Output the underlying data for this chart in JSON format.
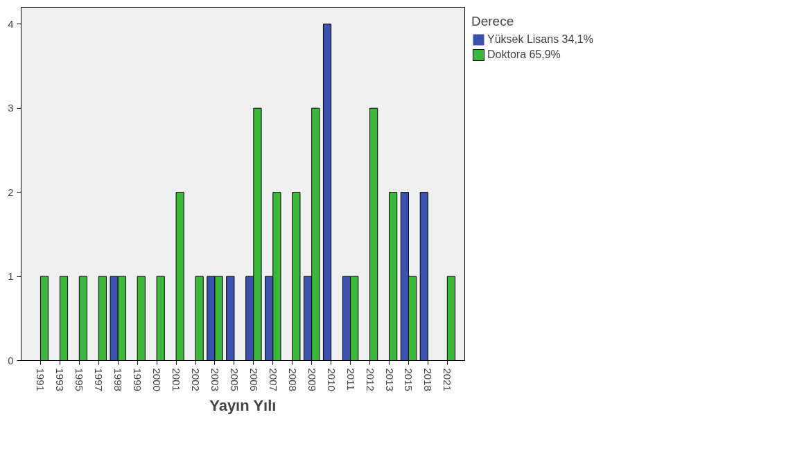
{
  "chart_data": {
    "type": "bar",
    "xlabel": "Yayın Yılı",
    "legend_title": "Derece",
    "legend": "top right",
    "grid": false,
    "categories": [
      "1991",
      "1993",
      "1995",
      "1997",
      "1998",
      "1999",
      "2000",
      "2001",
      "2002",
      "2003",
      "2005",
      "2006",
      "2007",
      "2008",
      "2009",
      "2010",
      "2011",
      "2012",
      "2013",
      "2015",
      "2018",
      "2021"
    ],
    "series": [
      {
        "name": "Yüksek Lisans 34,1%",
        "color": "#3a52ad",
        "values": [
          0,
          0,
          0,
          0,
          1,
          0,
          0,
          0,
          0,
          1,
          1,
          1,
          1,
          0,
          1,
          4,
          1,
          0,
          0,
          2,
          2,
          0
        ]
      },
      {
        "name": "Doktora 65,9%",
        "color": "#3cb93c",
        "values": [
          1,
          1,
          1,
          1,
          1,
          1,
          1,
          2,
          1,
          1,
          0,
          3,
          2,
          2,
          3,
          0,
          1,
          3,
          2,
          1,
          0,
          1
        ]
      }
    ],
    "ylim": [
      0,
      4.2
    ],
    "yticks": [
      0,
      1,
      2,
      3,
      4
    ]
  }
}
